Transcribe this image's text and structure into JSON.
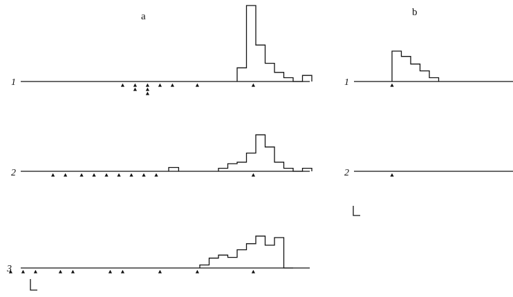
{
  "chart_data": [
    {
      "type": "histogram",
      "panel": "a",
      "rows": [
        {
          "label": "1",
          "bins": [
            {
              "x0": 0.0,
              "x1": 0.075,
              "h": 0.18
            },
            {
              "x0": 0.075,
              "x1": 0.15,
              "h": 1.0
            },
            {
              "x0": 0.15,
              "x1": 0.225,
              "h": 0.48
            },
            {
              "x0": 0.225,
              "x1": 0.3,
              "h": 0.24
            },
            {
              "x0": 0.3,
              "x1": 0.375,
              "h": 0.12
            },
            {
              "x0": 0.375,
              "x1": 0.45,
              "h": 0.05
            },
            {
              "x0": 0.45,
              "x1": 0.525,
              "h": 0.0
            },
            {
              "x0": 0.525,
              "x1": 0.6,
              "h": 0.08
            }
          ],
          "markers": [
            -0.92,
            -0.82,
            -0.82,
            -0.72,
            -0.72,
            -0.72,
            -0.62,
            -0.52,
            -0.32,
            0.13
          ]
        },
        {
          "label": "2",
          "bins": [
            {
              "x0": -0.15,
              "x1": -0.075,
              "h": 0.04
            },
            {
              "x0": -0.075,
              "x1": 0.0,
              "h": 0.1
            },
            {
              "x0": 0.0,
              "x1": 0.075,
              "h": 0.12
            },
            {
              "x0": 0.075,
              "x1": 0.15,
              "h": 0.24
            },
            {
              "x0": 0.15,
              "x1": 0.225,
              "h": 0.48
            },
            {
              "x0": 0.225,
              "x1": 0.3,
              "h": 0.32
            },
            {
              "x0": 0.3,
              "x1": 0.375,
              "h": 0.12
            },
            {
              "x0": 0.375,
              "x1": 0.45,
              "h": 0.04
            },
            {
              "x0": 0.45,
              "x1": 0.525,
              "h": 0.0
            },
            {
              "x0": 0.525,
              "x1": 0.6,
              "h": 0.04
            }
          ],
          "extra_bins": [
            {
              "x0": -0.55,
              "x1": -0.47,
              "h": 0.05
            }
          ],
          "markers": [
            -1.48,
            -1.38,
            -1.25,
            -1.15,
            -1.05,
            -0.95,
            -0.85,
            -0.75,
            -0.65,
            0.13
          ]
        },
        {
          "label": "3",
          "bins": [
            {
              "x0": -0.3,
              "x1": -0.225,
              "h": 0.04
            },
            {
              "x0": -0.225,
              "x1": -0.15,
              "h": 0.13
            },
            {
              "x0": -0.15,
              "x1": -0.075,
              "h": 0.17
            },
            {
              "x0": -0.075,
              "x1": 0.0,
              "h": 0.14
            },
            {
              "x0": 0.0,
              "x1": 0.075,
              "h": 0.24
            },
            {
              "x0": 0.075,
              "x1": 0.15,
              "h": 0.32
            },
            {
              "x0": 0.15,
              "x1": 0.225,
              "h": 0.42
            },
            {
              "x0": 0.225,
              "x1": 0.3,
              "h": 0.3
            },
            {
              "x0": 0.3,
              "x1": 0.375,
              "h": 0.4
            },
            {
              "x0": 0.375,
              "x1": 0.45,
              "h": 0.0
            }
          ],
          "markers": [
            -1.82,
            -1.72,
            -1.62,
            -1.42,
            -1.32,
            -1.02,
            -0.92,
            -0.62,
            -0.32,
            0.13
          ]
        }
      ]
    },
    {
      "type": "histogram",
      "panel": "b",
      "rows": [
        {
          "label": "1",
          "bins": [
            {
              "x0": 0.0,
              "x1": 0.075,
              "h": 0.4
            },
            {
              "x0": 0.075,
              "x1": 0.15,
              "h": 0.33
            },
            {
              "x0": 0.15,
              "x1": 0.225,
              "h": 0.23
            },
            {
              "x0": 0.225,
              "x1": 0.3,
              "h": 0.14
            },
            {
              "x0": 0.3,
              "x1": 0.375,
              "h": 0.05
            }
          ],
          "markers": [
            0.0
          ]
        },
        {
          "label": "2",
          "bins": [],
          "markers": [
            0.0
          ]
        }
      ]
    }
  ]
}
